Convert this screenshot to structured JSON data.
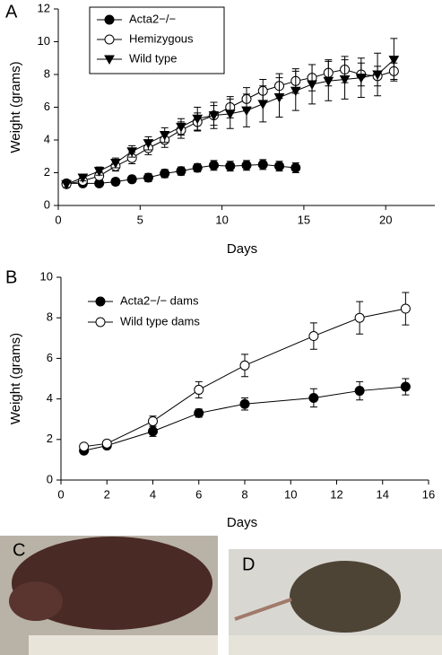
{
  "chart_data": [
    {
      "type": "line",
      "panel_label": "A",
      "x_label": "Days",
      "y_label": "Weight (grams)",
      "xlim": [
        0,
        23
      ],
      "xticks": [
        0,
        5,
        10,
        15,
        20
      ],
      "ylim": [
        0,
        12
      ],
      "yticks": [
        0,
        2,
        4,
        6,
        8,
        10,
        12
      ],
      "legend": "upper left",
      "legend_box": true,
      "x": [
        0.5,
        1.5,
        2.5,
        3.5,
        4.5,
        5.5,
        6.5,
        7.5,
        8.5,
        9.5,
        10.5,
        11.5,
        12.5,
        13.5,
        14.5,
        15.5,
        16.5,
        17.5,
        18.5,
        19.5,
        20.5
      ],
      "series": [
        {
          "name": "Acta2−/−",
          "color": "#000000",
          "marker": "circle",
          "filled": true,
          "values": [
            1.35,
            1.35,
            1.35,
            1.45,
            1.6,
            1.7,
            1.95,
            2.1,
            2.3,
            2.45,
            2.4,
            2.45,
            2.5,
            2.4,
            2.3,
            null,
            null,
            null,
            null,
            null,
            null
          ],
          "errors": [
            0.2,
            0.2,
            0.2,
            0.2,
            0.2,
            0.25,
            0.25,
            0.25,
            0.25,
            0.3,
            0.3,
            0.3,
            0.3,
            0.3,
            0.3,
            null,
            null,
            null,
            null,
            null,
            null
          ]
        },
        {
          "name": "Hemizygous",
          "color": "#000000",
          "marker": "circle",
          "filled": false,
          "values": [
            1.3,
            1.5,
            1.8,
            2.4,
            2.9,
            3.5,
            4.0,
            4.6,
            5.1,
            5.5,
            6.0,
            6.5,
            7.0,
            7.3,
            7.6,
            7.8,
            8.1,
            8.3,
            8.0,
            7.9,
            8.2
          ],
          "errors": [
            0.2,
            0.2,
            0.25,
            0.3,
            0.35,
            0.4,
            0.45,
            0.5,
            0.55,
            0.6,
            0.65,
            0.7,
            0.7,
            0.75,
            0.75,
            0.8,
            0.8,
            0.8,
            0.7,
            0.6,
            0.5
          ]
        },
        {
          "name": "Wild type",
          "color": "#000000",
          "marker": "triangle-down",
          "filled": true,
          "values": [
            1.3,
            1.7,
            2.1,
            2.6,
            3.3,
            3.8,
            4.3,
            4.8,
            5.3,
            5.5,
            5.6,
            5.8,
            6.2,
            6.6,
            7.0,
            7.4,
            7.6,
            7.7,
            7.8,
            8.0,
            8.9
          ],
          "errors": [
            0.2,
            0.2,
            0.25,
            0.3,
            0.35,
            0.4,
            0.45,
            0.5,
            0.7,
            0.8,
            0.9,
            1.0,
            1.1,
            1.2,
            1.2,
            1.2,
            1.2,
            1.2,
            1.2,
            1.3,
            1.3
          ]
        }
      ]
    },
    {
      "type": "line",
      "panel_label": "B",
      "x_label": "Days",
      "y_label": "Weight (grams)",
      "xlim": [
        0,
        16
      ],
      "xticks": [
        0,
        2,
        4,
        6,
        8,
        10,
        12,
        14,
        16
      ],
      "ylim": [
        0,
        10
      ],
      "yticks": [
        0,
        2,
        4,
        6,
        8,
        10
      ],
      "legend": "upper left",
      "legend_box": false,
      "x": [
        1,
        2,
        4,
        6,
        8,
        11,
        13,
        15
      ],
      "series": [
        {
          "name": "Acta2−/− dams",
          "color": "#000000",
          "marker": "circle",
          "filled": true,
          "values": [
            1.45,
            1.7,
            2.4,
            3.3,
            3.75,
            4.05,
            4.4,
            4.6
          ],
          "errors": [
            0.15,
            0.15,
            0.25,
            0.2,
            0.3,
            0.45,
            0.45,
            0.4
          ]
        },
        {
          "name": "Wild type dams",
          "color": "#000000",
          "marker": "circle",
          "filled": false,
          "values": [
            1.65,
            1.8,
            2.9,
            4.45,
            5.65,
            7.1,
            8.0,
            8.45
          ],
          "errors": [
            0.1,
            0.1,
            0.25,
            0.4,
            0.55,
            0.65,
            0.8,
            0.8
          ]
        }
      ]
    }
  ],
  "photos": [
    {
      "panel_label": "C"
    },
    {
      "panel_label": "D"
    }
  ]
}
